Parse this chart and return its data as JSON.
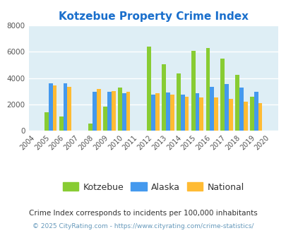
{
  "title": "Kotzebue Property Crime Index",
  "all_years": [
    2004,
    2005,
    2006,
    2007,
    2008,
    2009,
    2010,
    2011,
    2012,
    2013,
    2014,
    2015,
    2016,
    2017,
    2018,
    2019,
    2020
  ],
  "data_years": [
    2005,
    2006,
    2008,
    2009,
    2010,
    2012,
    2013,
    2014,
    2015,
    2016,
    2017,
    2018,
    2019
  ],
  "kotzebue": [
    1400,
    1050,
    550,
    1800,
    3250,
    6400,
    5050,
    4350,
    6100,
    6300,
    5500,
    4250,
    2550
  ],
  "alaska": [
    3600,
    3600,
    2950,
    2950,
    2850,
    2750,
    2900,
    2750,
    2850,
    3350,
    3550,
    3300,
    2950
  ],
  "national": [
    3450,
    3350,
    3150,
    3000,
    2950,
    2850,
    2750,
    2600,
    2500,
    2500,
    2400,
    2200,
    2100
  ],
  "kotzebue_color": "#88cc33",
  "alaska_color": "#4499ee",
  "national_color": "#ffbb33",
  "bg_color": "#deeef5",
  "ylim": [
    0,
    8000
  ],
  "yticks": [
    0,
    2000,
    4000,
    6000,
    8000
  ],
  "subtitle": "Crime Index corresponds to incidents per 100,000 inhabitants",
  "footer": "© 2025 CityRating.com - https://www.cityrating.com/crime-statistics/",
  "title_color": "#1a6fcc",
  "subtitle_color": "#333333",
  "footer_color": "#6699bb",
  "legend_labels": [
    "Kotzebue",
    "Alaska",
    "National"
  ],
  "bar_width": 0.28
}
